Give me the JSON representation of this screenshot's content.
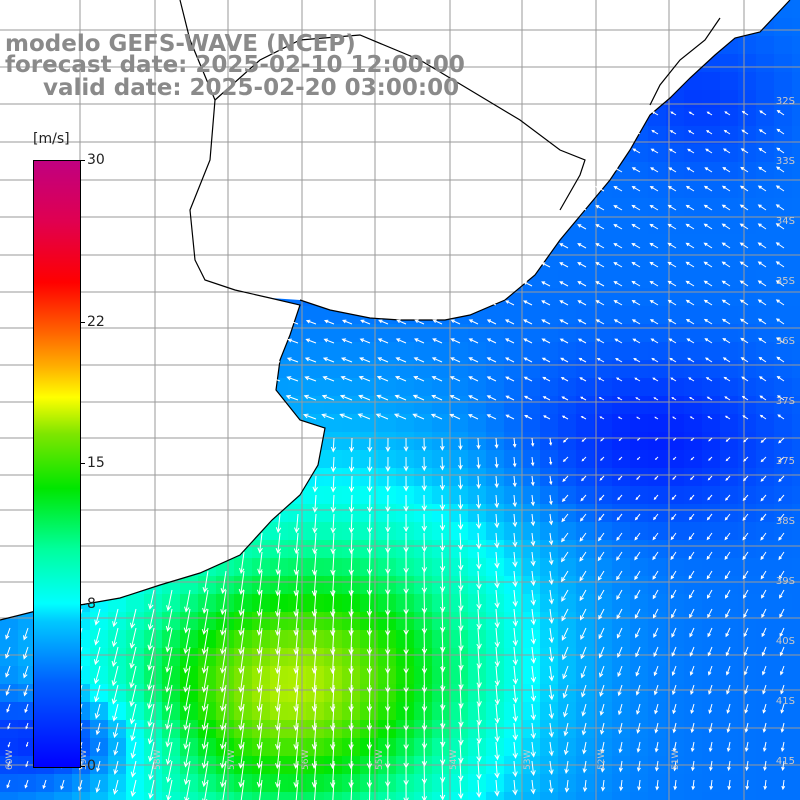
{
  "title": {
    "line1": "modelo GEFS-WAVE (NCEP)",
    "line2": "forecast date: 2025-02-10 12:00:00",
    "line3": "valid date: 2025-02-20 03:00:00"
  },
  "colorbar": {
    "unit": "[m/s]",
    "ticks": [
      {
        "label": "30",
        "value": 30
      },
      {
        "label": "22",
        "value": 22
      },
      {
        "label": "15",
        "value": 15
      },
      {
        "label": "8",
        "value": 8
      },
      {
        "label": "0",
        "value": 0
      }
    ],
    "min": 0,
    "max": 30
  },
  "lat_labels": [
    "32S",
    "33S",
    "34S",
    "35S",
    "36S",
    "37S",
    "375",
    "38S",
    "39S",
    "40S",
    "41S",
    "415"
  ],
  "lon_labels": [
    "60W",
    "59W",
    "58W",
    "57W",
    "56W",
    "55W",
    "54W",
    "53W",
    "52W",
    "51W"
  ],
  "colors": {
    "land": "#ffffff",
    "grid": "#9a9a9a",
    "coast": "#000000",
    "arrow": "#ffffff",
    "title": "#8a8a8a"
  }
}
